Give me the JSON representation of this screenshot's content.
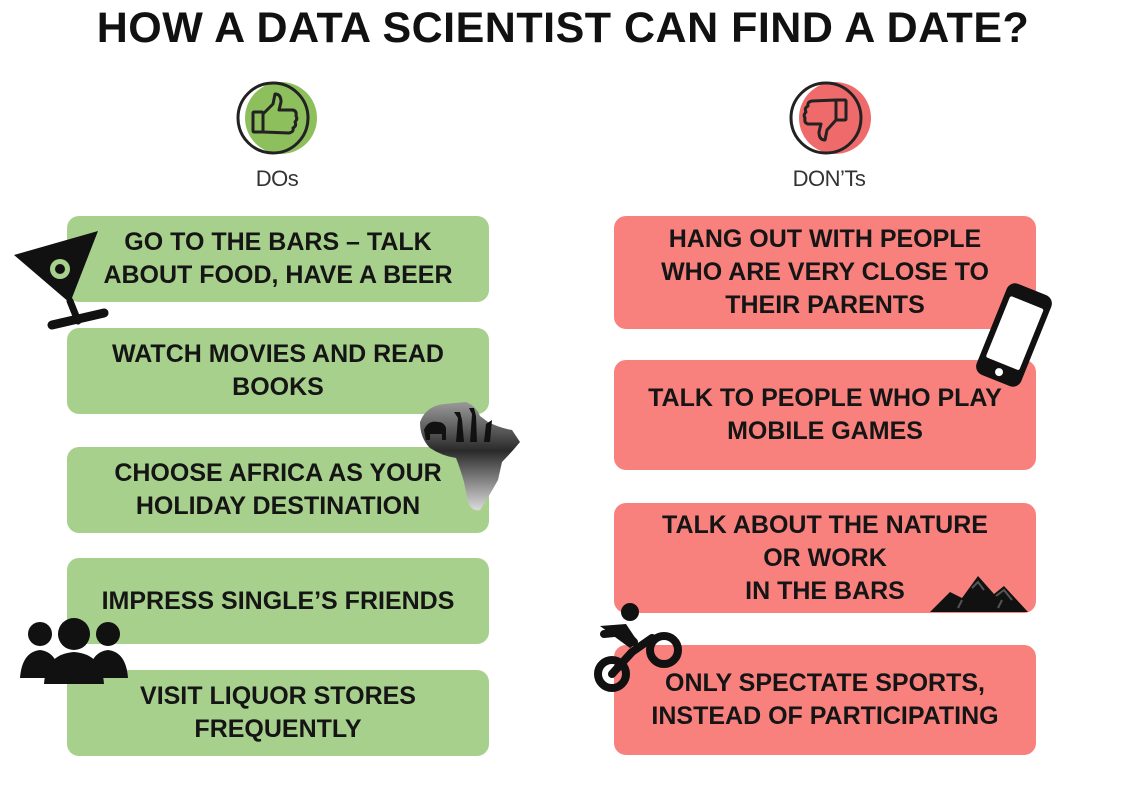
{
  "title": "HOW A DATA SCIENTIST CAN FIND A DATE?",
  "colors": {
    "do_bg": "#a8d08d",
    "dont_bg": "#f8817e",
    "do_accent": "#8dbf5c",
    "dont_accent": "#ef6a6a"
  },
  "dos": {
    "heading": "DOs",
    "icon": "thumbs-up-icon",
    "items": [
      {
        "text": "GO TO THE BARS – TALK\nABOUT FOOD, HAVE A BEER",
        "icon": "cocktail-glass-icon"
      },
      {
        "text": "WATCH MOVIES AND READ\nBOOKS"
      },
      {
        "text": "CHOOSE AFRICA AS YOUR\nHOLIDAY DESTINATION",
        "icon": "africa-safari-icon"
      },
      {
        "text": "IMPRESS SINGLE’S FRIENDS",
        "icon": "people-group-icon"
      },
      {
        "text": "VISIT LIQUOR STORES\nFREQUENTLY"
      }
    ]
  },
  "donts": {
    "heading": "DON’Ts",
    "icon": "thumbs-down-icon",
    "items": [
      {
        "text": "HANG OUT WITH PEOPLE\nWHO ARE VERY CLOSE TO\nTHEIR PARENTS",
        "icon": "mobile-phone-icon"
      },
      {
        "text": "TALK TO PEOPLE WHO PLAY\nMOBILE GAMES"
      },
      {
        "text": "TALK ABOUT THE NATURE\nOR WORK\nIN THE BARS",
        "icon": "mountains-icon"
      },
      {
        "text": "ONLY SPECTATE SPORTS,\nINSTEAD OF PARTICIPATING",
        "icon": "cyclist-icon"
      }
    ]
  }
}
